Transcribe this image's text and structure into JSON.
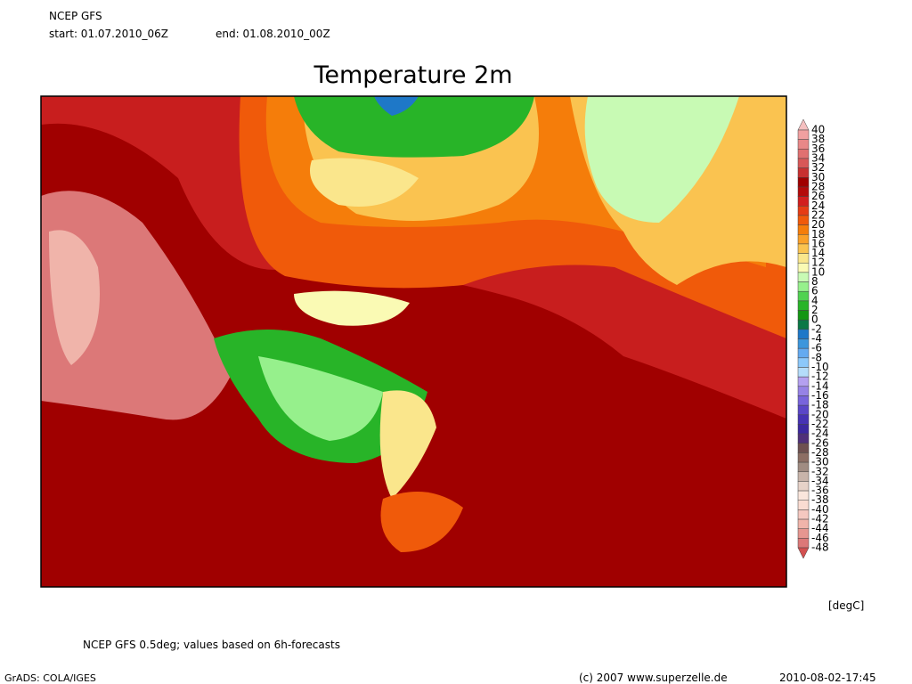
{
  "header": {
    "model": "NCEP GFS",
    "start": "start: 01.07.2010_06Z",
    "end": "end: 01.08.2010_00Z"
  },
  "title": "Temperature 2m",
  "colorbar": {
    "labels": [
      "40",
      "38",
      "36",
      "34",
      "32",
      "30",
      "28",
      "26",
      "24",
      "22",
      "20",
      "18",
      "16",
      "14",
      "12",
      "10",
      "8",
      "6",
      "4",
      "2",
      "0",
      "-2",
      "-4",
      "-6",
      "-8",
      "-10",
      "-12",
      "-14",
      "-16",
      "-18",
      "-20",
      "-22",
      "-24",
      "-26",
      "-28",
      "-30",
      "-32",
      "-34",
      "-36",
      "-38",
      "-40",
      "-42",
      "-44",
      "-46",
      "-48"
    ],
    "colors": [
      "#f5c0c0",
      "#f0a0a0",
      "#e88888",
      "#e07070",
      "#d85858",
      "#c83030",
      "#a00000",
      "#b40a0a",
      "#d21e1e",
      "#e63c14",
      "#f05a0a",
      "#f57d0a",
      "#faa028",
      "#fac350",
      "#fae68c",
      "#fafab4",
      "#c8fab4",
      "#96f08c",
      "#50d250",
      "#28b428",
      "#149614",
      "#0a7846",
      "#1e78c8",
      "#3c96dc",
      "#64aaf0",
      "#8cc8fa",
      "#b4dcfa",
      "#b4a0f0",
      "#9682e6",
      "#7864dc",
      "#5a46c8",
      "#4632b4",
      "#3c28a0",
      "#50307a",
      "#6e5050",
      "#8c6e64",
      "#a08c82",
      "#c8b4aa",
      "#e6d2c8",
      "#fae6dc",
      "#fadcd2",
      "#f5c8c0",
      "#f0b4aa",
      "#e69690",
      "#dc7878",
      "#d25050"
    ],
    "unit": "[degC]"
  },
  "footer": {
    "note": "NCEP GFS 0.5deg; values based on 6h-forecasts",
    "software": "GrADS: COLA/IGES",
    "copyright": "(c) 2007 www.superzelle.de",
    "timestamp": "2010-08-02-17:45"
  }
}
